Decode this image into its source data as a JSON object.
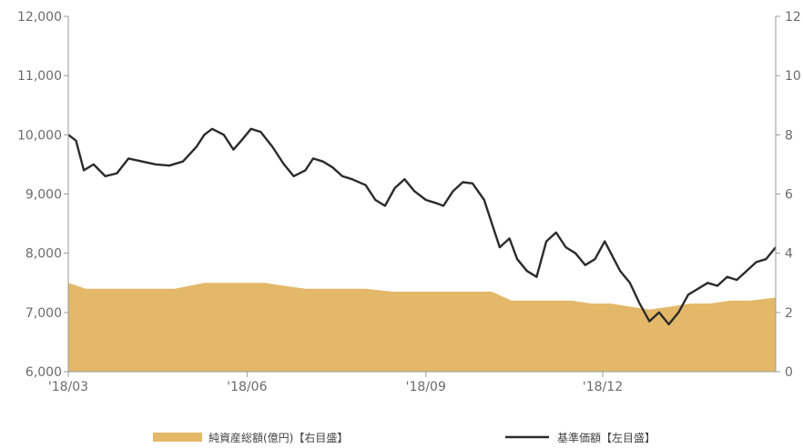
{
  "chart_data": {
    "type": "line",
    "title": "",
    "colors": {
      "nav": "#e3b868",
      "price": "#2b2b2b",
      "axis": "#9a9a9a",
      "tick_text": "#6b6b6b"
    },
    "x_tick_labels": [
      "'18/03",
      "'18/06",
      "'18/09",
      "'18/12"
    ],
    "x_tick_dates": [
      "2018-03",
      "2018-06",
      "2018-09",
      "2018-12"
    ],
    "y_left": {
      "ylim": [
        6000,
        12000
      ],
      "ticks": [
        "6,000",
        "7,000",
        "8,000",
        "9,000",
        "10,000",
        "11,000",
        "12,000"
      ]
    },
    "y_right": {
      "ylim": [
        0,
        12
      ],
      "ticks": [
        "0",
        "2",
        "4",
        "6",
        "8",
        "10",
        "12"
      ]
    },
    "legend": [
      "純資産総額(億円)【右目盛】",
      "基準価額【左目盛】"
    ],
    "legend_position": "bottom",
    "series": [
      {
        "name": "純資産総額(億円)【右目盛】",
        "type": "area",
        "axis": "right",
        "x": [
          "2018-03-01",
          "2018-03-10",
          "2018-03-25",
          "2018-04-10",
          "2018-04-25",
          "2018-05-10",
          "2018-05-25",
          "2018-06-01",
          "2018-06-10",
          "2018-06-20",
          "2018-07-01",
          "2018-07-15",
          "2018-08-01",
          "2018-08-15",
          "2018-09-01",
          "2018-09-15",
          "2018-09-25",
          "2018-10-05",
          "2018-10-15",
          "2018-10-25",
          "2018-11-05",
          "2018-11-15",
          "2018-11-25",
          "2018-12-05",
          "2018-12-15",
          "2018-12-25",
          "2019-01-05",
          "2019-01-15",
          "2019-01-25",
          "2019-02-05",
          "2019-02-15",
          "2019-02-28"
        ],
        "values": [
          3.0,
          2.8,
          2.8,
          2.8,
          2.8,
          3.0,
          3.0,
          3.0,
          3.0,
          2.9,
          2.8,
          2.8,
          2.8,
          2.7,
          2.7,
          2.7,
          2.7,
          2.7,
          2.4,
          2.4,
          2.4,
          2.4,
          2.3,
          2.3,
          2.2,
          2.1,
          2.2,
          2.3,
          2.3,
          2.4,
          2.4,
          2.5
        ]
      },
      {
        "name": "基準価額【左目盛】",
        "type": "line",
        "axis": "left",
        "x": [
          "2018-03-01",
          "2018-03-05",
          "2018-03-09",
          "2018-03-14",
          "2018-03-20",
          "2018-03-26",
          "2018-04-01",
          "2018-04-08",
          "2018-04-15",
          "2018-04-22",
          "2018-04-29",
          "2018-05-06",
          "2018-05-10",
          "2018-05-14",
          "2018-05-20",
          "2018-05-25",
          "2018-05-29",
          "2018-06-03",
          "2018-06-08",
          "2018-06-14",
          "2018-06-20",
          "2018-06-25",
          "2018-07-01",
          "2018-07-05",
          "2018-07-10",
          "2018-07-15",
          "2018-07-20",
          "2018-07-25",
          "2018-08-01",
          "2018-08-06",
          "2018-08-11",
          "2018-08-16",
          "2018-08-21",
          "2018-08-26",
          "2018-09-01",
          "2018-09-06",
          "2018-09-10",
          "2018-09-15",
          "2018-09-20",
          "2018-09-25",
          "2018-10-01",
          "2018-10-05",
          "2018-10-09",
          "2018-10-14",
          "2018-10-18",
          "2018-10-23",
          "2018-10-28",
          "2018-11-02",
          "2018-11-07",
          "2018-11-12",
          "2018-11-17",
          "2018-11-22",
          "2018-11-27",
          "2018-12-02",
          "2018-12-06",
          "2018-12-10",
          "2018-12-15",
          "2018-12-20",
          "2018-12-25",
          "2018-12-30",
          "2019-01-04",
          "2019-01-09",
          "2019-01-14",
          "2019-01-19",
          "2019-01-24",
          "2019-01-29",
          "2019-02-03",
          "2019-02-08",
          "2019-02-13",
          "2019-02-18",
          "2019-02-23",
          "2019-02-28"
        ],
        "values": [
          10000,
          9900,
          9400,
          9500,
          9300,
          9350,
          9600,
          9550,
          9500,
          9480,
          9550,
          9800,
          10000,
          10100,
          10000,
          9750,
          9900,
          10100,
          10050,
          9800,
          9500,
          9300,
          9400,
          9600,
          9550,
          9450,
          9300,
          9250,
          9150,
          8900,
          8800,
          9100,
          9250,
          9050,
          8900,
          8850,
          8800,
          9050,
          9200,
          9180,
          8900,
          8500,
          8100,
          8250,
          7900,
          7700,
          7600,
          8200,
          8350,
          8100,
          8000,
          7800,
          7900,
          8200,
          7950,
          7700,
          7500,
          7150,
          6850,
          7000,
          6800,
          7000,
          7300,
          7400,
          7500,
          7450,
          7600,
          7550,
          7700,
          7850,
          7900,
          8100
        ]
      }
    ]
  }
}
